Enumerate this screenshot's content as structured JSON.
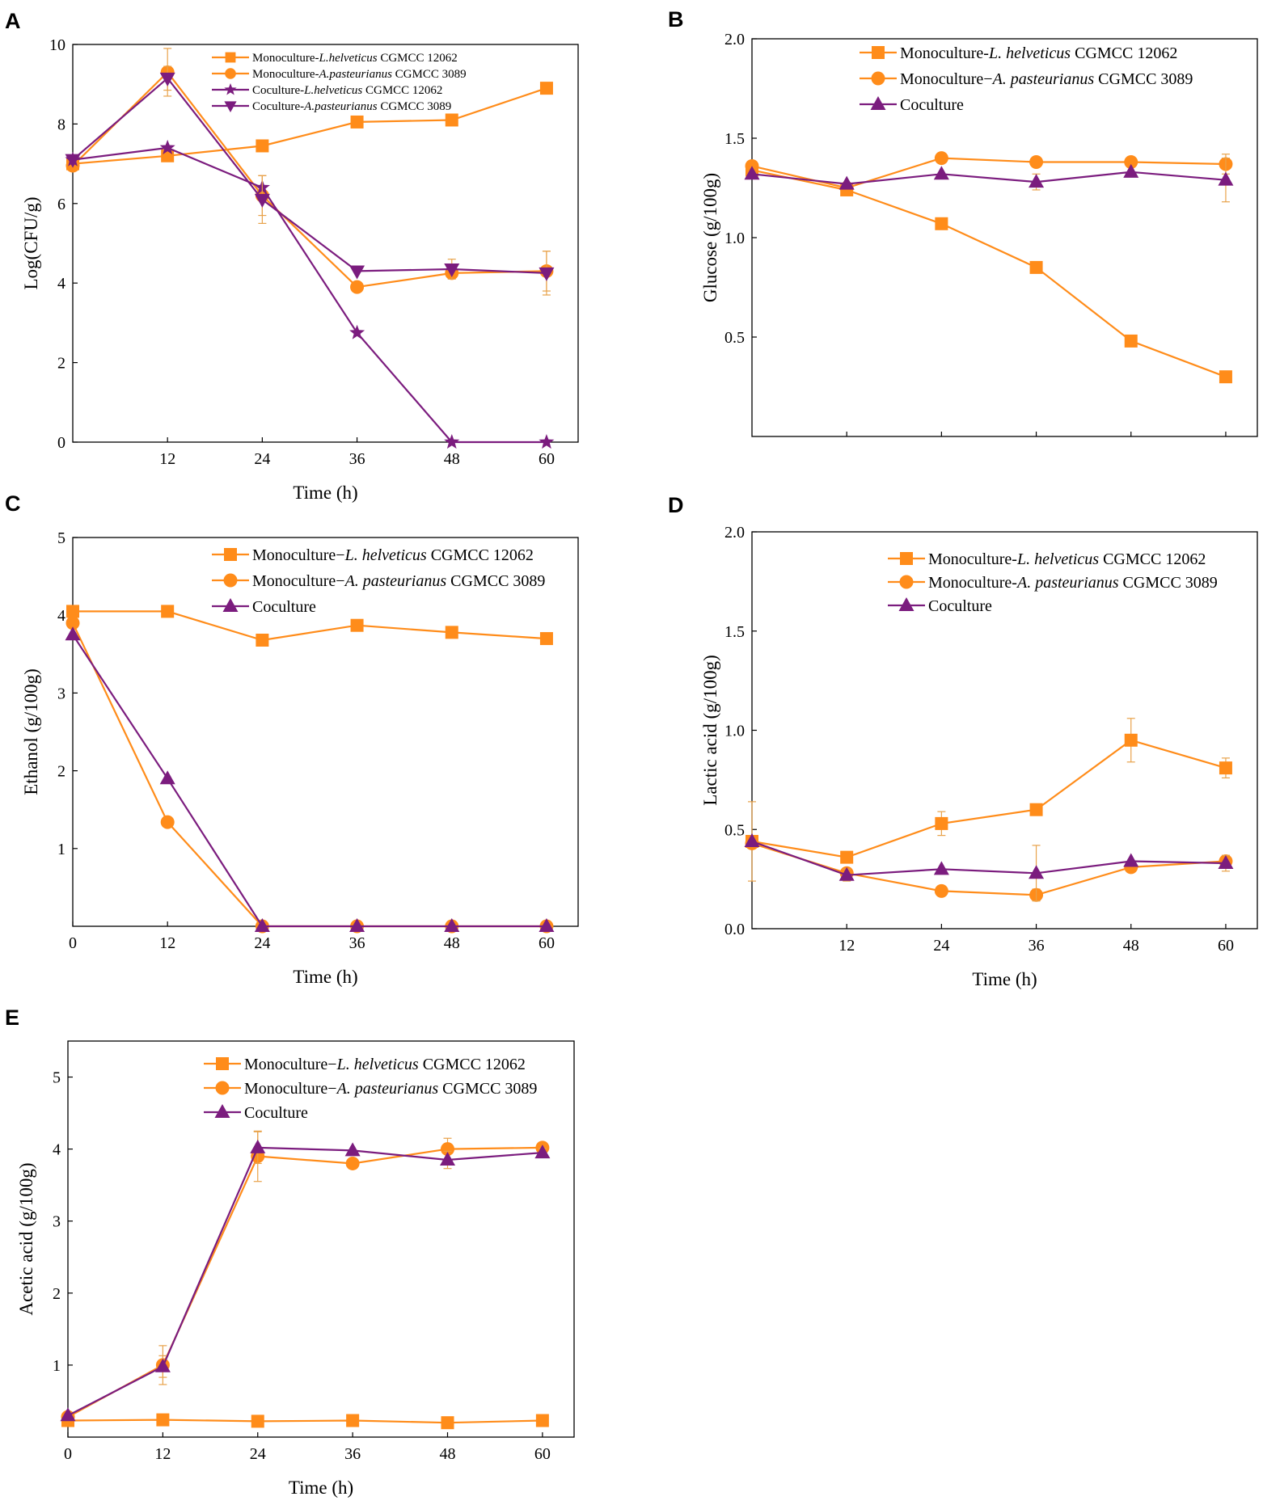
{
  "figure": {
    "colors": {
      "orange": "#FF8C1A",
      "purple": "#7B1C7E",
      "errorbar": "#E8A24A",
      "axis": "#000000"
    }
  },
  "chart_data": [
    {
      "panel": "A",
      "type": "line",
      "xlabel": "Time (h)",
      "ylabel": "Log(CFU/g)",
      "xlim": [
        0,
        64
      ],
      "ylim": [
        0,
        10
      ],
      "xticks": [
        12,
        24,
        36,
        48,
        60
      ],
      "yticks": [
        0,
        2,
        4,
        6,
        8,
        10
      ],
      "legend_position": "top-center",
      "series": [
        {
          "name": "Monoculture-",
          "species": "L.helveticus",
          "strain": " CGMCC 12062",
          "marker": "square",
          "color": "orange",
          "x": [
            0,
            12,
            24,
            36,
            48,
            60
          ],
          "y": [
            7.0,
            7.2,
            7.45,
            8.05,
            8.1,
            8.9
          ],
          "err": [
            0,
            0,
            0,
            0,
            0,
            0
          ]
        },
        {
          "name": "Monoculture-",
          "species": "A.pasteurianus",
          "strain": " CGMCC 3089",
          "marker": "circle",
          "color": "orange",
          "x": [
            0,
            12,
            24,
            36,
            48,
            60
          ],
          "y": [
            6.95,
            9.3,
            6.2,
            3.9,
            4.25,
            4.3
          ],
          "err": [
            0,
            0.6,
            0.5,
            0,
            0.1,
            0.5
          ]
        },
        {
          "name": "Coculture-",
          "species": "L.helveticus",
          "strain": " CGMCC 12062",
          "marker": "star",
          "color": "purple",
          "x": [
            0,
            12,
            24,
            36,
            48,
            60
          ],
          "y": [
            7.1,
            7.4,
            6.4,
            2.75,
            0,
            0
          ],
          "err": [
            0,
            0,
            0.3,
            0,
            0,
            0
          ]
        },
        {
          "name": "Coculture-",
          "species": "A.pasteurianus",
          "strain": " CGMCC 3089",
          "marker": "triangle-down",
          "color": "purple",
          "x": [
            0,
            12,
            24,
            36,
            48,
            60
          ],
          "y": [
            7.1,
            9.15,
            6.1,
            4.3,
            4.35,
            4.25
          ],
          "err": [
            0,
            0.3,
            0.6,
            0,
            0.25,
            0.55
          ]
        }
      ]
    },
    {
      "panel": "B",
      "type": "line",
      "xlabel": "",
      "ylabel": "Glucose (g/100g)",
      "xlim": [
        0,
        64
      ],
      "ylim": [
        0,
        2.0
      ],
      "xticks": [
        12,
        24,
        36,
        48,
        60
      ],
      "yticks": [
        0.5,
        1.0,
        1.5,
        2.0
      ],
      "yticklabels": [
        "0.5",
        "1.0",
        "1.5",
        "2.0"
      ],
      "legend_position": "top-center",
      "series": [
        {
          "name": "Monoculture-",
          "species": "L. helveticus",
          "strain": " CGMCC 12062",
          "marker": "square",
          "color": "orange",
          "x": [
            0,
            12,
            24,
            36,
            48,
            60
          ],
          "y": [
            1.34,
            1.24,
            1.07,
            0.85,
            0.48,
            0.3
          ],
          "err": [
            0,
            0,
            0,
            0,
            0,
            0
          ]
        },
        {
          "name": "Monoculture−",
          "species": "A. pasteurianus",
          "strain": " CGMCC 3089",
          "marker": "circle",
          "color": "orange",
          "x": [
            0,
            12,
            24,
            36,
            48,
            60
          ],
          "y": [
            1.36,
            1.25,
            1.4,
            1.38,
            1.38,
            1.37
          ],
          "err": [
            0,
            0,
            0,
            0,
            0,
            0.05
          ]
        },
        {
          "name": "Coculture",
          "species": "",
          "strain": "",
          "marker": "triangle",
          "color": "purple",
          "x": [
            0,
            12,
            24,
            36,
            48,
            60
          ],
          "y": [
            1.32,
            1.27,
            1.32,
            1.28,
            1.33,
            1.29
          ],
          "err": [
            0,
            0,
            0,
            0.04,
            0,
            0.11
          ]
        }
      ]
    },
    {
      "panel": "C",
      "type": "line",
      "xlabel": "Time (h)",
      "ylabel": "Ethanol (g/100g)",
      "xlim": [
        0,
        64
      ],
      "ylim": [
        0,
        5
      ],
      "xticks": [
        0,
        12,
        24,
        36,
        48,
        60
      ],
      "yticks": [
        1,
        2,
        3,
        4,
        5
      ],
      "legend_position": "top-center",
      "series": [
        {
          "name": "Monoculture−",
          "species": "L. helveticus",
          "strain": " CGMCC 12062",
          "marker": "square",
          "color": "orange",
          "x": [
            0,
            12,
            24,
            36,
            48,
            60
          ],
          "y": [
            4.05,
            4.05,
            3.68,
            3.87,
            3.78,
            3.7
          ],
          "err": [
            0,
            0,
            0,
            0,
            0,
            0
          ]
        },
        {
          "name": "Monoculture−",
          "species": "A. pasteurianus",
          "strain": " CGMCC 3089",
          "marker": "circle",
          "color": "orange",
          "x": [
            0,
            12,
            24,
            36,
            48,
            60
          ],
          "y": [
            3.9,
            1.34,
            0,
            0,
            0,
            0
          ],
          "err": [
            0,
            0,
            0,
            0,
            0,
            0
          ]
        },
        {
          "name": "Coculture",
          "species": "",
          "strain": "",
          "marker": "triangle",
          "color": "purple",
          "x": [
            0,
            12,
            24,
            36,
            48,
            60
          ],
          "y": [
            3.75,
            1.9,
            0,
            0,
            0,
            0
          ],
          "err": [
            0,
            0,
            0,
            0,
            0,
            0
          ]
        }
      ]
    },
    {
      "panel": "D",
      "type": "line",
      "xlabel": "Time (h)",
      "ylabel": "Lactic acid (g/100g)",
      "xlim": [
        0,
        64
      ],
      "ylim": [
        0,
        2.0
      ],
      "xticks": [
        12,
        24,
        36,
        48,
        60
      ],
      "yticks": [
        0,
        0.5,
        1.0,
        1.5,
        2.0
      ],
      "yticklabels": [
        "0.0",
        "0.5",
        "1.0",
        "1.5",
        "2.0"
      ],
      "legend_position": "top-center",
      "series": [
        {
          "name": "Monoculture-",
          "species": "L. helveticus",
          "strain": " CGMCC 12062",
          "marker": "square",
          "color": "orange",
          "x": [
            0,
            12,
            24,
            36,
            48,
            60
          ],
          "y": [
            0.44,
            0.36,
            0.53,
            0.6,
            0.95,
            0.81
          ],
          "err": [
            0.2,
            0,
            0.06,
            0,
            0.11,
            0.05
          ]
        },
        {
          "name": "Monoculture-",
          "species": "A. pasteurianus",
          "strain": " CGMCC 3089",
          "marker": "circle",
          "color": "orange",
          "x": [
            0,
            12,
            24,
            36,
            48,
            60
          ],
          "y": [
            0.43,
            0.28,
            0.19,
            0.17,
            0.31,
            0.34
          ],
          "err": [
            0,
            0,
            0,
            0.03,
            0,
            0
          ]
        },
        {
          "name": "Coculture",
          "species": "",
          "strain": "",
          "marker": "triangle",
          "color": "purple",
          "x": [
            0,
            12,
            24,
            36,
            48,
            60
          ],
          "y": [
            0.44,
            0.27,
            0.3,
            0.28,
            0.34,
            0.33
          ],
          "err": [
            0,
            0.03,
            0,
            0.14,
            0,
            0.04
          ]
        }
      ]
    },
    {
      "panel": "E",
      "type": "line",
      "xlabel": "Time (h)",
      "ylabel": "Acetic acid (g/100g)",
      "xlim": [
        0,
        64
      ],
      "ylim": [
        0,
        5.5
      ],
      "xticks": [
        0,
        12,
        24,
        36,
        48,
        60
      ],
      "yticks": [
        1,
        2,
        3,
        4,
        5
      ],
      "legend_position": "top-center",
      "series": [
        {
          "name": "Monoculture−",
          "species": "L. helveticus",
          "strain": " CGMCC 12062",
          "marker": "square",
          "color": "orange",
          "x": [
            0,
            12,
            24,
            36,
            48,
            60
          ],
          "y": [
            0.23,
            0.24,
            0.22,
            0.23,
            0.2,
            0.23
          ],
          "err": [
            0,
            0,
            0,
            0,
            0,
            0
          ]
        },
        {
          "name": "Monoculture−",
          "species": "A. pasteurianus",
          "strain": " CGMCC 3089",
          "marker": "circle",
          "color": "orange",
          "x": [
            0,
            12,
            24,
            36,
            48,
            60
          ],
          "y": [
            0.28,
            1.0,
            3.9,
            3.8,
            4.0,
            4.02
          ],
          "err": [
            0,
            0.27,
            0.35,
            0.07,
            0.15,
            0
          ]
        },
        {
          "name": "Coculture",
          "species": "",
          "strain": "",
          "marker": "triangle",
          "color": "purple",
          "x": [
            0,
            12,
            24,
            36,
            48,
            60
          ],
          "y": [
            0.3,
            0.98,
            4.02,
            3.98,
            3.85,
            3.95
          ],
          "err": [
            0,
            0.15,
            0.22,
            0,
            0.12,
            0.06
          ]
        }
      ]
    }
  ]
}
